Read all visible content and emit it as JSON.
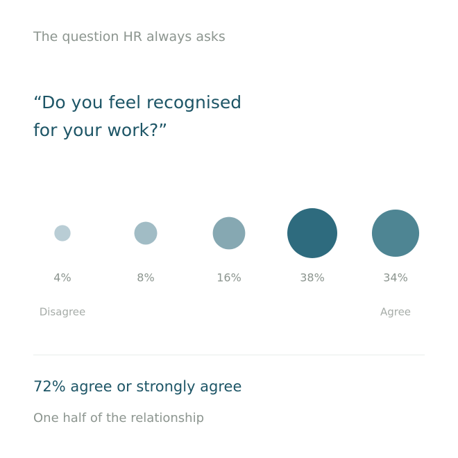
{
  "chart_data": {
    "type": "bubble",
    "subtitle": "The question HR always asks",
    "title": "“Do you feel recognised for your work?”",
    "categories": [
      "Disagree",
      null,
      null,
      null,
      "Agree"
    ],
    "values": [
      4,
      8,
      16,
      38,
      34
    ],
    "value_labels": [
      "4%",
      "8%",
      "16%",
      "38%",
      "34%"
    ],
    "colors": [
      "#b9cdd5",
      "#a1bcc5",
      "#86a8b2",
      "#2e6b7e",
      "#4e8593"
    ]
  },
  "summary": {
    "headline": "72% agree or strongly agree",
    "note": "One half of the relationship"
  }
}
